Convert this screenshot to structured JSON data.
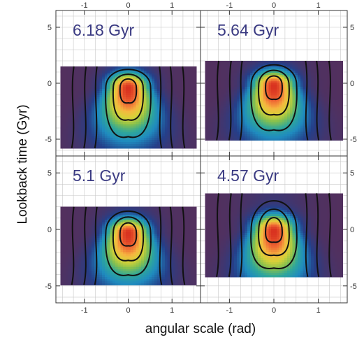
{
  "chart_data": {
    "type": "heatmap",
    "xlabel": "angular scale (rad)",
    "ylabel": "Lookback time (Gyr)",
    "xlim": [
      -1.65,
      1.65
    ],
    "ylim": [
      -6.5,
      6.5
    ],
    "xticks": [
      -1,
      0,
      1
    ],
    "yticks": [
      -5,
      0,
      5
    ],
    "grid": true,
    "colormap": [
      "#52305e",
      "#243f8a",
      "#1f8bbf",
      "#2fa79a",
      "#86c04e",
      "#d6d238",
      "#f6b640",
      "#ef6a34",
      "#d8311f"
    ],
    "contour_levels": [
      0.08,
      0.18,
      0.3,
      0.45,
      0.62,
      0.8
    ],
    "panels": [
      {
        "label": "6.18 Gyr",
        "t_range": [
          -5.8,
          1.5
        ],
        "peak": [
          0,
          -0.4
        ],
        "axis_left": true,
        "axis_top": true
      },
      {
        "label": "5.64 Gyr",
        "t_range": [
          -5.1,
          2.0
        ],
        "peak": [
          0,
          -0.2
        ],
        "axis_left": false,
        "axis_top": true
      },
      {
        "label": "5.1 Gyr",
        "t_range": [
          -4.9,
          2.0
        ],
        "peak": [
          0,
          -0.3
        ],
        "axis_left": true,
        "axis_top": false
      },
      {
        "label": "4.57 Gyr",
        "t_range": [
          -4.2,
          3.2
        ],
        "peak": [
          0,
          -0.1
        ],
        "axis_left": false,
        "axis_top": false
      }
    ]
  }
}
